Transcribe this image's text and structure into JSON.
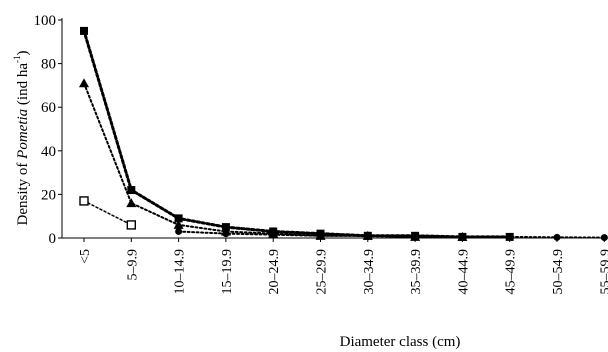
{
  "chart_data": {
    "type": "line",
    "xlabel": "Diameter class (cm)",
    "ylabel_parts": {
      "prefix": "Density of ",
      "italic": "Pometia",
      "suffix": " (ind ha",
      "superscript": "-1",
      "close": ")"
    },
    "ylim": [
      0,
      100
    ],
    "yticks": [
      "0",
      "20",
      "40",
      "60",
      "80",
      "100"
    ],
    "categories": [
      "<5",
      "5–9.9",
      "10–14.9",
      "15–19.9",
      "20–24.9",
      "25–29.9",
      "30–34.9",
      "35–39.9",
      "40–44.9",
      "45–49.9",
      "50–54.9",
      "55–59.9"
    ],
    "grid": false,
    "series": [
      {
        "marker": "square-filled",
        "values": [
          95,
          22,
          9,
          5,
          3,
          2,
          1,
          1,
          0.5,
          0.5,
          null,
          null
        ]
      },
      {
        "marker": "triangle-filled",
        "values": [
          71,
          16,
          6,
          3,
          2,
          1,
          1,
          0.5,
          0.5,
          null,
          null,
          null
        ]
      },
      {
        "marker": "square-open",
        "values": [
          17,
          6,
          null,
          null,
          null,
          null,
          null,
          null,
          null,
          null,
          null,
          null
        ]
      },
      {
        "marker": "circle-filled",
        "values": [
          null,
          null,
          3,
          2,
          1.5,
          1,
          1,
          0.5,
          0.5,
          0.5,
          0.3,
          0.2
        ]
      }
    ]
  }
}
